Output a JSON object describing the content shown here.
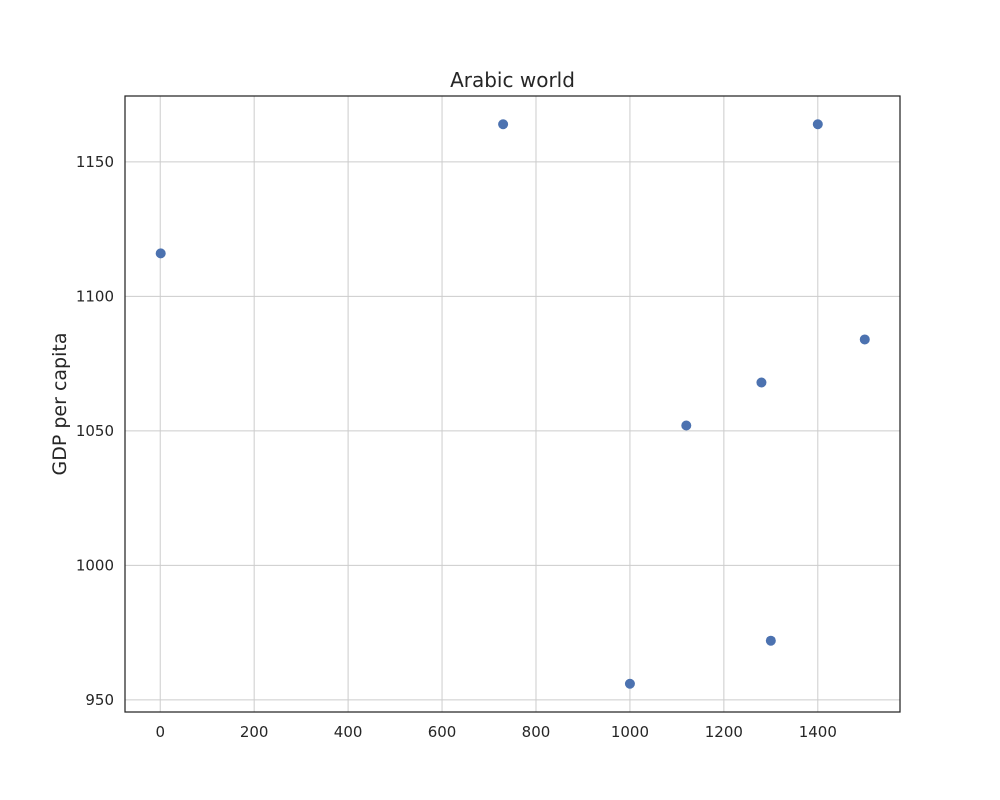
{
  "chart_data": {
    "type": "scatter",
    "title": "Arabic world",
    "xlabel": "",
    "ylabel": "GDP per capita",
    "xlim": [
      -75,
      1575
    ],
    "ylim": [
      945.5,
      1174.5
    ],
    "x_ticks": [
      0,
      200,
      400,
      600,
      800,
      1000,
      1200,
      1400
    ],
    "y_ticks": [
      950,
      1000,
      1050,
      1100,
      1150
    ],
    "grid": true,
    "legend": "none",
    "series": [
      {
        "color": "#4c72b0",
        "points": [
          {
            "x": 1,
            "y": 1116
          },
          {
            "x": 730,
            "y": 1164
          },
          {
            "x": 1000,
            "y": 956
          },
          {
            "x": 1120,
            "y": 1052
          },
          {
            "x": 1280,
            "y": 1068
          },
          {
            "x": 1300,
            "y": 972
          },
          {
            "x": 1400,
            "y": 1164
          },
          {
            "x": 1500,
            "y": 1084
          }
        ]
      }
    ]
  }
}
